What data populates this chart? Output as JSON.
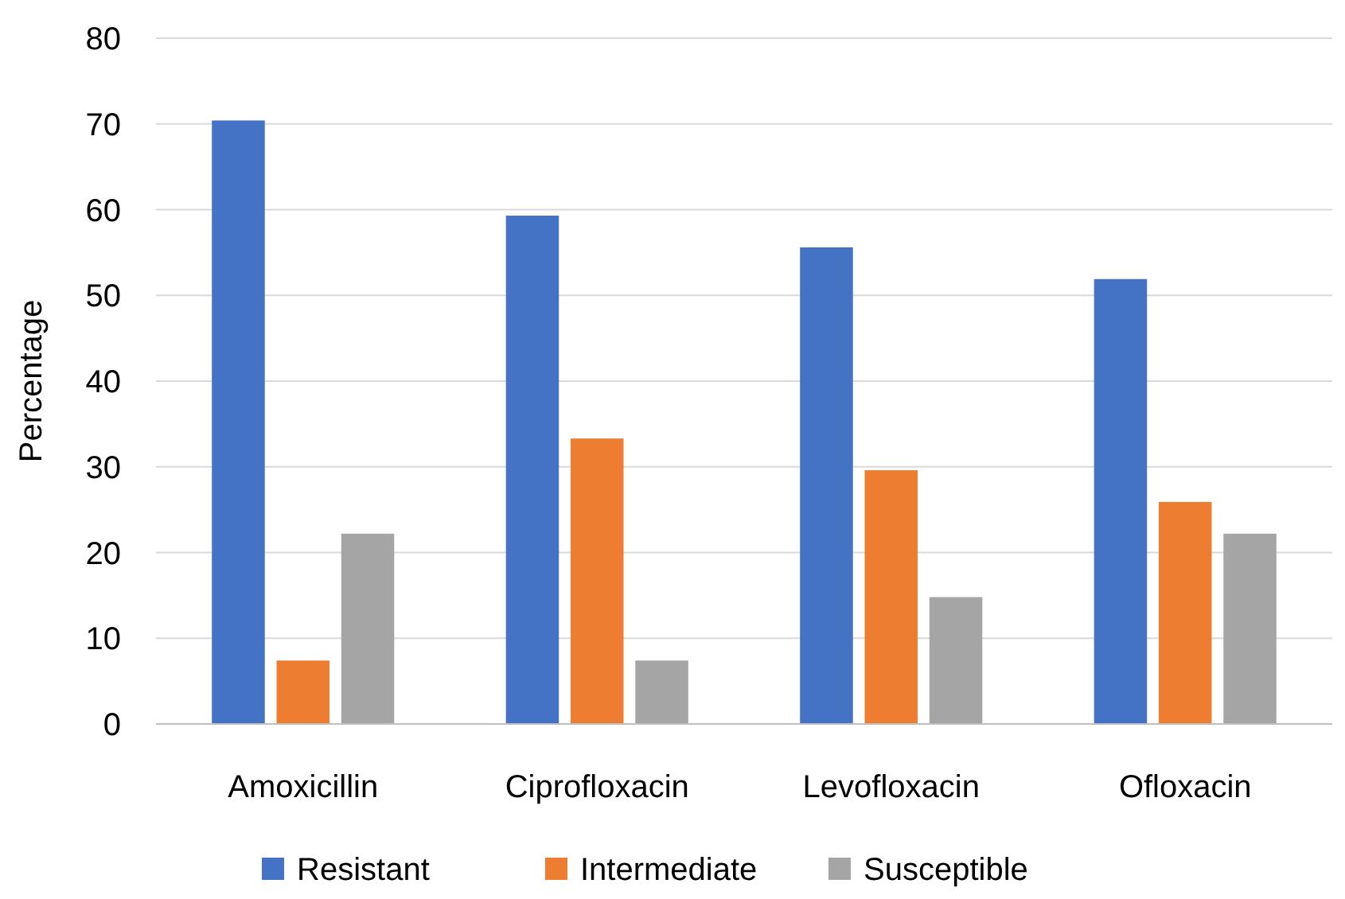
{
  "chart_data": {
    "type": "bar",
    "ylabel": "Percentage",
    "categories": [
      "Amoxicillin",
      "Ciprofloxacin",
      "Levofloxacin",
      "Ofloxacin"
    ],
    "series": [
      {
        "name": "Resistant",
        "color": "#4472c4",
        "values": [
          70.4,
          59.3,
          55.6,
          51.9
        ]
      },
      {
        "name": "Intermediate",
        "color": "#ed7d31",
        "values": [
          7.4,
          33.3,
          29.6,
          25.9
        ]
      },
      {
        "name": "Susceptible",
        "color": "#a5a5a5",
        "values": [
          22.2,
          7.4,
          14.8,
          22.2
        ]
      }
    ],
    "ylim": [
      0,
      80
    ],
    "yticks": [
      0,
      10,
      20,
      30,
      40,
      50,
      60,
      70,
      80
    ],
    "grid": "y",
    "legend": "bottom"
  }
}
